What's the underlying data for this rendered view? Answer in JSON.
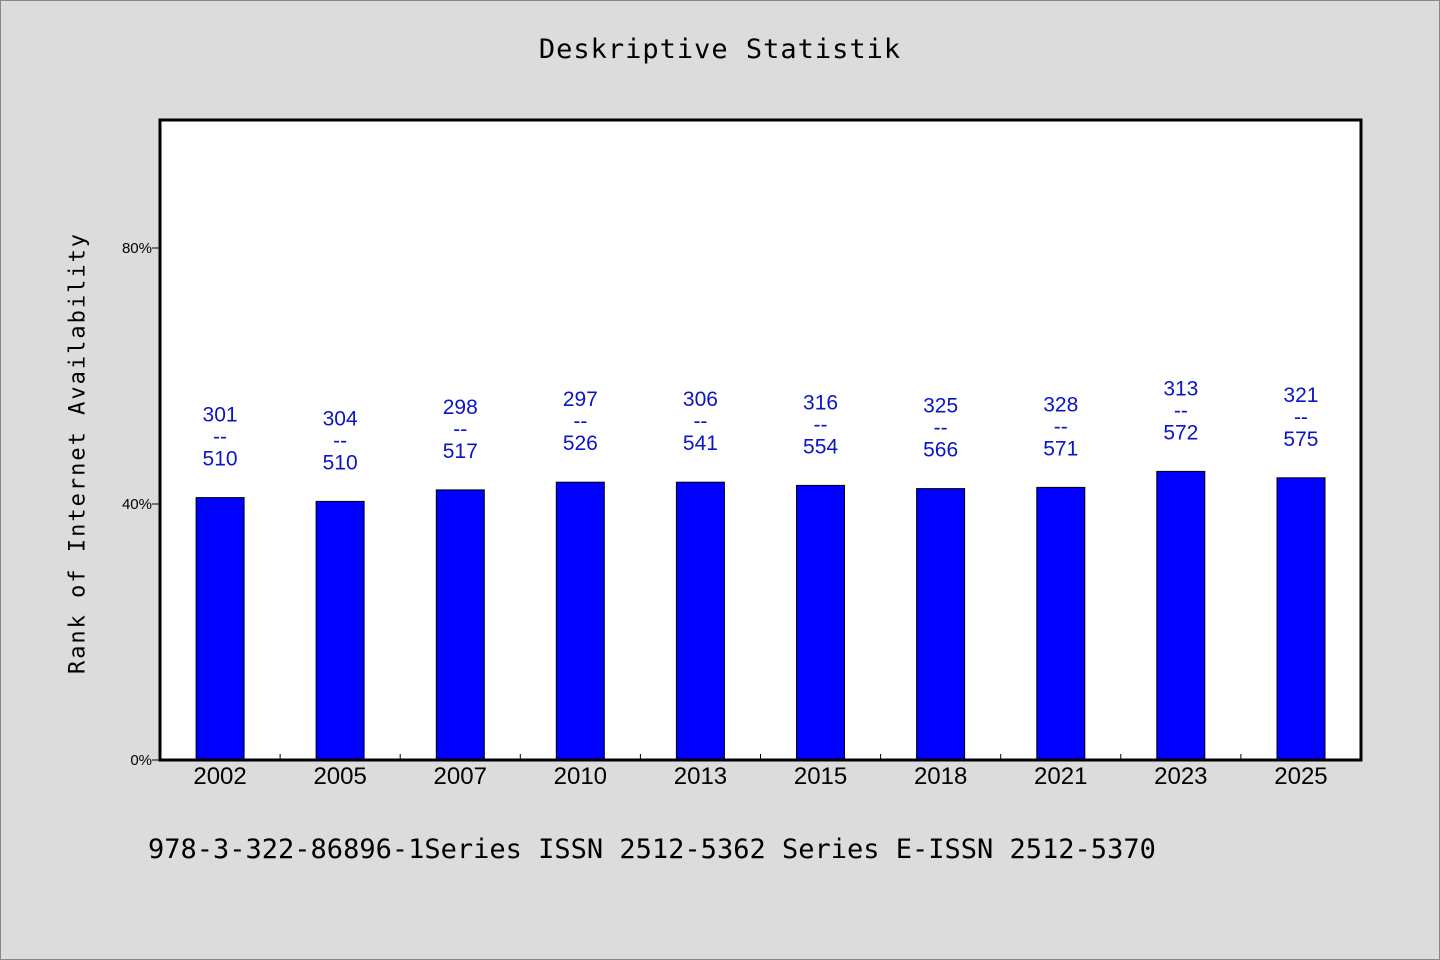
{
  "title": "Deskriptive Statistik",
  "footer": "978-3-322-86896-1Series ISSN 2512-5362 Series E-ISSN 2512-5370",
  "colors": {
    "bar": "#0000ff",
    "data_label": "#0a14c8",
    "background": "#dcdcdc",
    "plot_background": "#ffffff"
  },
  "chart_data": {
    "type": "bar",
    "title": "Deskriptive Statistik",
    "ylabel": "Rank of Internet Availability",
    "xlabel": "",
    "ylim": [
      0,
      100
    ],
    "yticks": [
      {
        "value": 0,
        "label": "0%"
      },
      {
        "value": 40,
        "label": "40%"
      },
      {
        "value": 80,
        "label": "80%"
      }
    ],
    "categories": [
      "2002",
      "2005",
      "2007",
      "2010",
      "2013",
      "2015",
      "2018",
      "2021",
      "2023",
      "2025"
    ],
    "values": [
      41.0,
      40.4,
      42.2,
      43.4,
      43.4,
      42.9,
      42.4,
      42.6,
      45.1,
      44.1
    ],
    "annotations": [
      {
        "top": "301",
        "sep": "--",
        "bottom": "510"
      },
      {
        "top": "304",
        "sep": "--",
        "bottom": "510"
      },
      {
        "top": "298",
        "sep": "--",
        "bottom": "517"
      },
      {
        "top": "297",
        "sep": "--",
        "bottom": "526"
      },
      {
        "top": "306",
        "sep": "--",
        "bottom": "541"
      },
      {
        "top": "316",
        "sep": "--",
        "bottom": "554"
      },
      {
        "top": "325",
        "sep": "--",
        "bottom": "566"
      },
      {
        "top": "328",
        "sep": "--",
        "bottom": "571"
      },
      {
        "top": "313",
        "sep": "--",
        "bottom": "572"
      },
      {
        "top": "321",
        "sep": "--",
        "bottom": "575"
      }
    ],
    "grid": false,
    "legend": false
  }
}
